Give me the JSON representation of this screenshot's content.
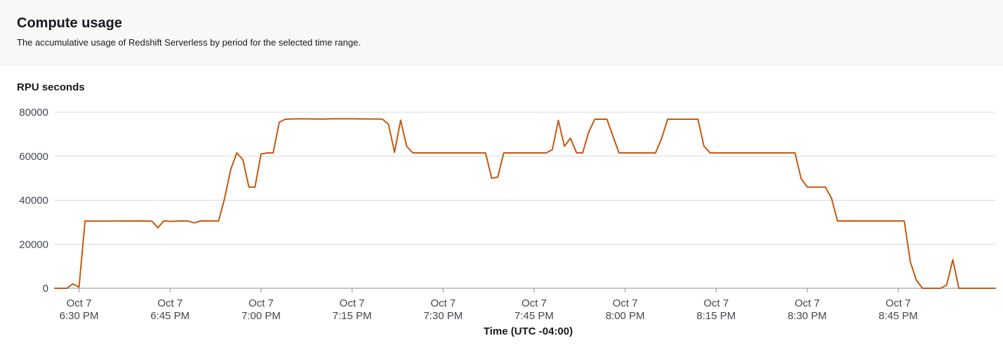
{
  "header": {
    "title": "Compute usage",
    "subtitle": "The accumulative usage of Redshift Serverless by period for the selected time range."
  },
  "colors": {
    "line": "#c8580f",
    "grid": "#d5dbdb",
    "header_bg": "#f8f8f8"
  },
  "chart_data": {
    "type": "line",
    "title": "Compute usage",
    "ylabel": "RPU seconds",
    "xlabel": "Time (UTC -04:00)",
    "ylim": [
      0,
      80000
    ],
    "yticks": [
      0,
      20000,
      40000,
      60000,
      80000
    ],
    "xlim": [
      "18:26",
      "21:01"
    ],
    "xticks": [
      {
        "t": "18:30",
        "label1": "Oct 7",
        "label2": "6:30 PM"
      },
      {
        "t": "18:45",
        "label1": "Oct 7",
        "label2": "6:45 PM"
      },
      {
        "t": "19:00",
        "label1": "Oct 7",
        "label2": "7:00 PM"
      },
      {
        "t": "19:15",
        "label1": "Oct 7",
        "label2": "7:15 PM"
      },
      {
        "t": "19:30",
        "label1": "Oct 7",
        "label2": "7:30 PM"
      },
      {
        "t": "19:45",
        "label1": "Oct 7",
        "label2": "7:45 PM"
      },
      {
        "t": "20:00",
        "label1": "Oct 7",
        "label2": "8:00 PM"
      },
      {
        "t": "20:15",
        "label1": "Oct 7",
        "label2": "8:15 PM"
      },
      {
        "t": "20:30",
        "label1": "Oct 7",
        "label2": "8:30 PM"
      },
      {
        "t": "20:45",
        "label1": "Oct 7",
        "label2": "8:45 PM"
      }
    ],
    "grid": true,
    "series": [
      {
        "color": "#c8580f",
        "points": [
          [
            "18:26",
            0
          ],
          [
            "18:28",
            0
          ],
          [
            "18:29",
            2000
          ],
          [
            "18:30",
            500
          ],
          [
            "18:31",
            30600
          ],
          [
            "18:33",
            30500
          ],
          [
            "18:40",
            30600
          ],
          [
            "18:42",
            30500
          ],
          [
            "18:43",
            27500
          ],
          [
            "18:44",
            30700
          ],
          [
            "18:45",
            30400
          ],
          [
            "18:47",
            30600
          ],
          [
            "18:48",
            30500
          ],
          [
            "18:49",
            29700
          ],
          [
            "18:50",
            30600
          ],
          [
            "18:52",
            30600
          ],
          [
            "18:53",
            30500
          ],
          [
            "18:54",
            41000
          ],
          [
            "18:55",
            54000
          ],
          [
            "18:56",
            61500
          ],
          [
            "18:57",
            58500
          ],
          [
            "18:58",
            46000
          ],
          [
            "18:59",
            46000
          ],
          [
            "19:00",
            61000
          ],
          [
            "19:01",
            61500
          ],
          [
            "19:02",
            61500
          ],
          [
            "19:03",
            75500
          ],
          [
            "19:04",
            76800
          ],
          [
            "19:06",
            77000
          ],
          [
            "19:10",
            76900
          ],
          [
            "19:12",
            77000
          ],
          [
            "19:15",
            77000
          ],
          [
            "19:20",
            76900
          ],
          [
            "19:21",
            74500
          ],
          [
            "19:22",
            61800
          ],
          [
            "19:23",
            76400
          ],
          [
            "19:24",
            64500
          ],
          [
            "19:25",
            61500
          ],
          [
            "19:30",
            61500
          ],
          [
            "19:35",
            61500
          ],
          [
            "19:37",
            61500
          ],
          [
            "19:38",
            50000
          ],
          [
            "19:39",
            50500
          ],
          [
            "19:40",
            61500
          ],
          [
            "19:45",
            61500
          ],
          [
            "19:47",
            61500
          ],
          [
            "19:48",
            63000
          ],
          [
            "19:49",
            76300
          ],
          [
            "19:50",
            64500
          ],
          [
            "19:51",
            68200
          ],
          [
            "19:52",
            61500
          ],
          [
            "19:53",
            61500
          ],
          [
            "19:54",
            71000
          ],
          [
            "19:55",
            76800
          ],
          [
            "19:57",
            76800
          ],
          [
            "19:58",
            69000
          ],
          [
            "19:59",
            61500
          ],
          [
            "20:00",
            61500
          ],
          [
            "20:05",
            61500
          ],
          [
            "20:06",
            68000
          ],
          [
            "20:07",
            76800
          ],
          [
            "20:10",
            76800
          ],
          [
            "20:12",
            76800
          ],
          [
            "20:13",
            64500
          ],
          [
            "20:14",
            61500
          ],
          [
            "20:20",
            61500
          ],
          [
            "20:25",
            61500
          ],
          [
            "20:28",
            61500
          ],
          [
            "20:29",
            49800
          ],
          [
            "20:30",
            46000
          ],
          [
            "20:32",
            46000
          ],
          [
            "20:33",
            46000
          ],
          [
            "20:34",
            41000
          ],
          [
            "20:35",
            30600
          ],
          [
            "20:40",
            30600
          ],
          [
            "20:45",
            30600
          ],
          [
            "20:46",
            30600
          ],
          [
            "20:47",
            12000
          ],
          [
            "20:48",
            3700
          ],
          [
            "20:49",
            0
          ],
          [
            "20:52",
            0
          ],
          [
            "20:53",
            1500
          ],
          [
            "20:54",
            13000
          ],
          [
            "20:55",
            0
          ],
          [
            "21:01",
            0
          ]
        ]
      }
    ]
  }
}
